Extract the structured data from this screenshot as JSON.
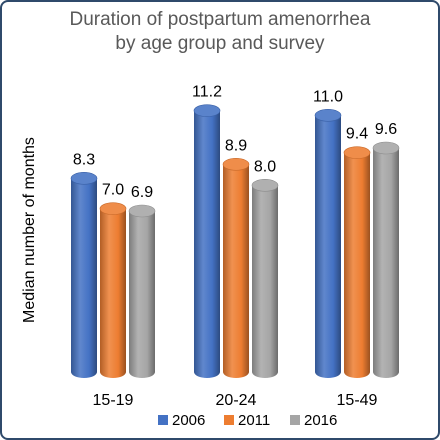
{
  "chart_data": {
    "type": "bar",
    "title": "Duration of postpartum amenorrhea by age group and survey",
    "title_lines": [
      "Duration of postpartum amenorrhea",
      "by age group and survey"
    ],
    "xlabel": "",
    "ylabel": "Median number of months",
    "categories": [
      "15-19",
      "20-24",
      "15-49"
    ],
    "series": [
      {
        "name": "2006",
        "values": [
          8.3,
          11.2,
          11.0
        ],
        "color": "#4472C4"
      },
      {
        "name": "2011",
        "values": [
          7.0,
          8.9,
          9.4
        ],
        "color": "#ED7D31"
      },
      {
        "name": "2016",
        "values": [
          6.9,
          8.0,
          9.6
        ],
        "color": "#A5A5A5"
      }
    ],
    "value_labels": [
      [
        "8.3",
        "11.2",
        "11.0"
      ],
      [
        "7.0",
        "8.9",
        "9.4"
      ],
      [
        "6.9",
        "8.0",
        "9.6"
      ]
    ],
    "ylim": [
      0,
      12
    ],
    "grid": false,
    "legend": "bottom",
    "style": "3d cylinder"
  }
}
